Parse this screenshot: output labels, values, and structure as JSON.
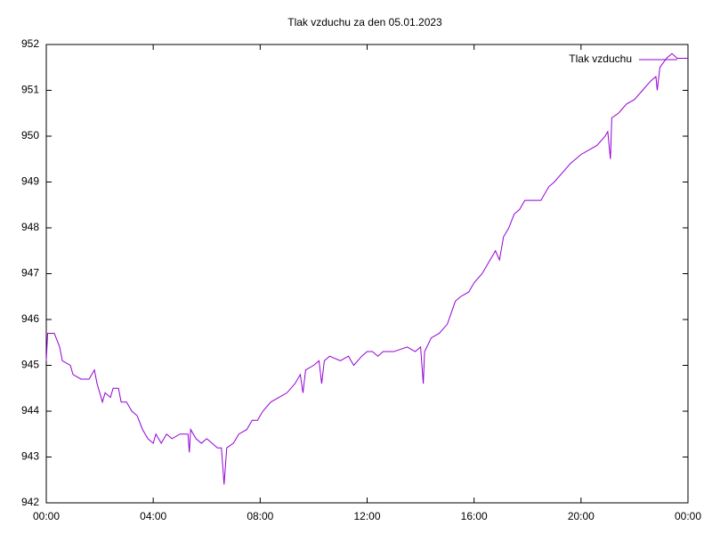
{
  "chart_data": {
    "type": "line",
    "title": "Tlak vzduchu za den 05.01.2023",
    "x": [
      0.0,
      0.05,
      0.3,
      0.5,
      0.6,
      0.9,
      1.0,
      1.3,
      1.6,
      1.8,
      1.9,
      2.1,
      2.2,
      2.4,
      2.5,
      2.7,
      2.8,
      3.0,
      3.2,
      3.4,
      3.6,
      3.8,
      4.0,
      4.1,
      4.3,
      4.5,
      4.7,
      5.0,
      5.3,
      5.35,
      5.4,
      5.6,
      5.8,
      6.0,
      6.2,
      6.4,
      6.55,
      6.65,
      6.75,
      7.0,
      7.2,
      7.5,
      7.7,
      7.9,
      8.1,
      8.4,
      8.7,
      9.0,
      9.3,
      9.5,
      9.6,
      9.7,
      10.0,
      10.2,
      10.3,
      10.4,
      10.6,
      11.0,
      11.3,
      11.5,
      11.8,
      12.0,
      12.2,
      12.4,
      12.6,
      13.0,
      13.5,
      13.8,
      14.0,
      14.1,
      14.15,
      14.4,
      14.7,
      15.0,
      15.3,
      15.5,
      15.8,
      16.0,
      16.3,
      16.6,
      16.8,
      16.95,
      17.1,
      17.3,
      17.5,
      17.7,
      17.9,
      18.2,
      18.5,
      18.8,
      19.0,
      19.3,
      19.6,
      20.0,
      20.3,
      20.6,
      20.9,
      21.0,
      21.1,
      21.15,
      21.4,
      21.7,
      22.0,
      22.3,
      22.6,
      22.8,
      22.85,
      22.95,
      23.2,
      23.4,
      23.6,
      24.0
    ],
    "series": [
      {
        "name": "Tlak vzduchu",
        "color": "#9400d3",
        "values": [
          945.1,
          945.7,
          945.7,
          945.4,
          945.1,
          945.0,
          944.8,
          944.7,
          944.7,
          944.9,
          944.6,
          944.2,
          944.4,
          944.3,
          944.5,
          944.5,
          944.2,
          944.2,
          944.0,
          943.9,
          943.6,
          943.4,
          943.3,
          943.5,
          943.3,
          943.5,
          943.4,
          943.5,
          943.5,
          943.1,
          943.6,
          943.4,
          943.3,
          943.4,
          943.3,
          943.2,
          943.2,
          942.4,
          943.2,
          943.3,
          943.5,
          943.6,
          943.8,
          943.8,
          944.0,
          944.2,
          944.3,
          944.4,
          944.6,
          944.8,
          944.4,
          944.9,
          945.0,
          945.1,
          944.6,
          945.1,
          945.2,
          945.1,
          945.2,
          945.0,
          945.2,
          945.3,
          945.3,
          945.2,
          945.3,
          945.3,
          945.4,
          945.3,
          945.4,
          944.6,
          945.3,
          945.6,
          945.7,
          945.9,
          946.4,
          946.5,
          946.6,
          946.8,
          947.0,
          947.3,
          947.5,
          947.3,
          947.8,
          948.0,
          948.3,
          948.4,
          948.6,
          948.6,
          948.6,
          948.9,
          949.0,
          949.2,
          949.4,
          949.6,
          949.7,
          949.8,
          950.0,
          950.1,
          949.5,
          950.4,
          950.5,
          950.7,
          950.8,
          951.0,
          951.2,
          951.3,
          951.0,
          951.5,
          951.7,
          951.8,
          951.7,
          951.7
        ]
      }
    ],
    "xlim": [
      0,
      24
    ],
    "xticks": [
      {
        "value": 0,
        "label": "00:00"
      },
      {
        "value": 4,
        "label": "04:00"
      },
      {
        "value": 8,
        "label": "08:00"
      },
      {
        "value": 12,
        "label": "12:00"
      },
      {
        "value": 16,
        "label": "16:00"
      },
      {
        "value": 20,
        "label": "20:00"
      },
      {
        "value": 24,
        "label": "00:00"
      }
    ],
    "ylim": [
      942,
      952
    ],
    "yticks": [
      942,
      943,
      944,
      945,
      946,
      947,
      948,
      949,
      950,
      951,
      952
    ],
    "legend": "top-right"
  }
}
